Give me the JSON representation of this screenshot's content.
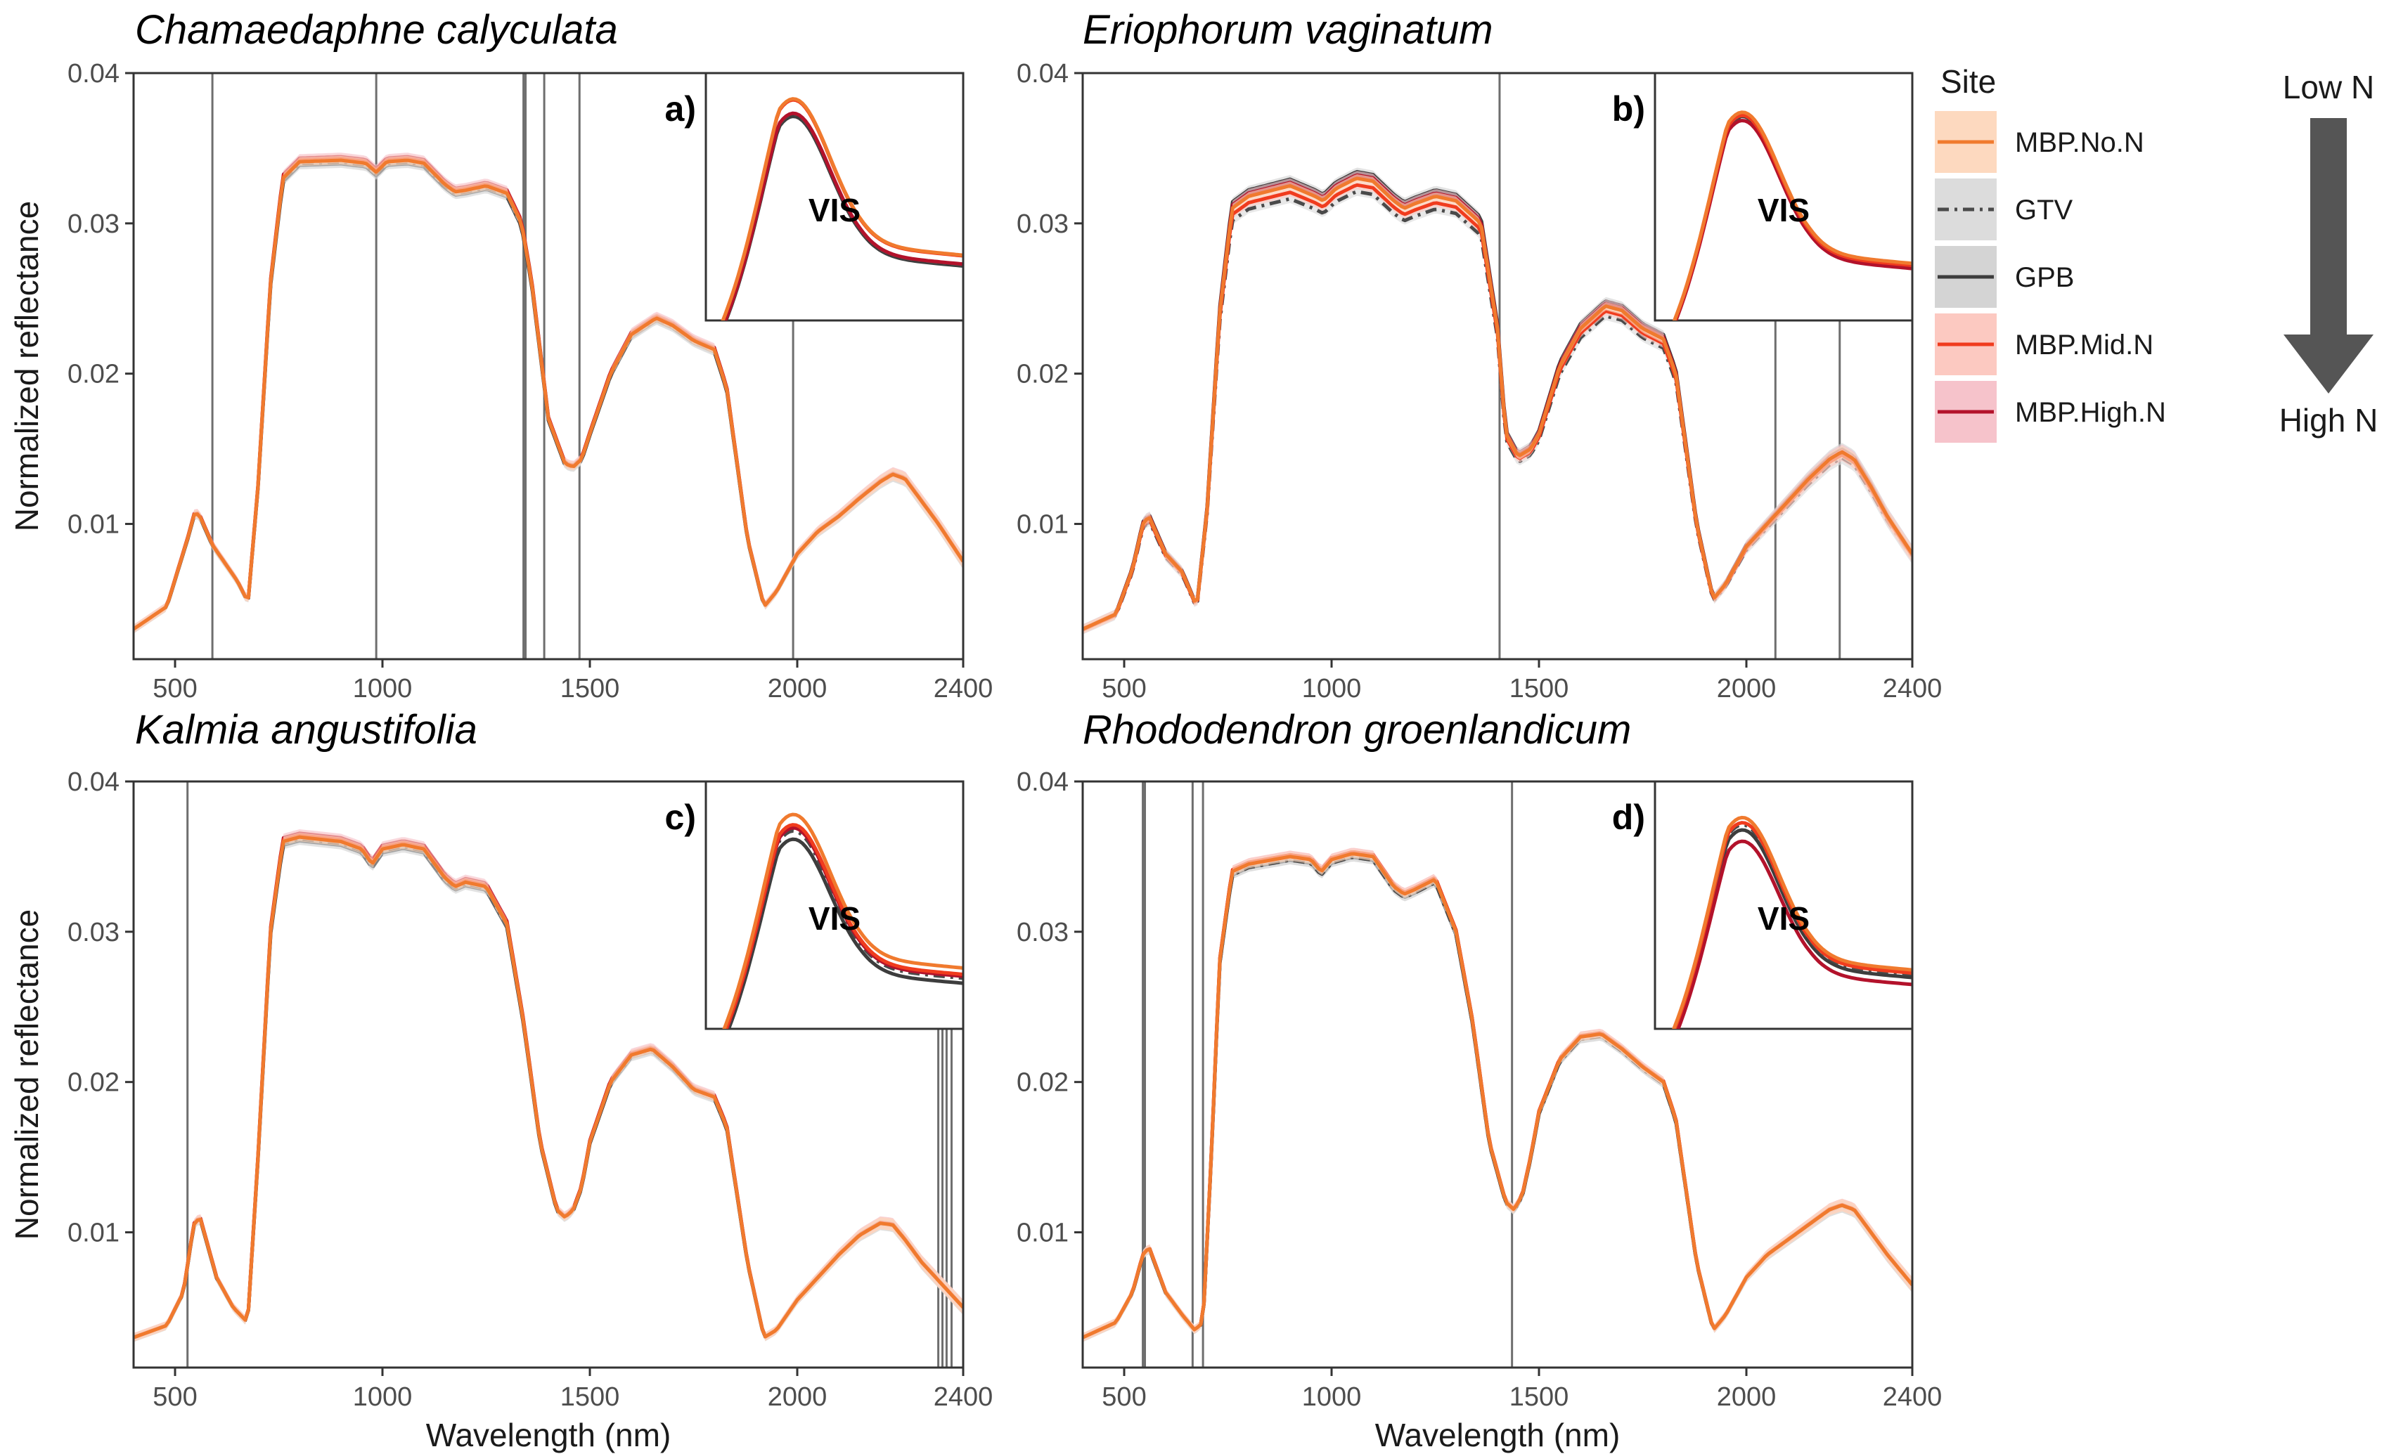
{
  "chart_data": [
    {
      "type": "line",
      "panel_label": "a)",
      "title": "Chamaedaphne calyculata",
      "xlabel": "",
      "ylabel": "Normalized reflectance",
      "xlim": [
        400,
        2400
      ],
      "ylim": [
        0.001,
        0.04
      ],
      "xticks": [
        500,
        1000,
        1500,
        2000,
        2400
      ],
      "xtick_labels": [
        "500",
        "1000",
        "1500",
        "2000",
        "2400"
      ],
      "yticks": [
        0.01,
        0.02,
        0.03,
        0.04
      ],
      "ytick_labels": [
        "0.01",
        "0.02",
        "0.03",
        "0.04"
      ],
      "vlines": [
        590,
        985,
        1340,
        1345,
        1390,
        1475,
        1990
      ],
      "inset_label": "VIS",
      "inset_peaks": {
        "MBP.No.N": 0.0395,
        "GTV": 0.038,
        "GPB": 0.0378,
        "MBP.Mid.N": 0.0394,
        "MBP.High.N": 0.0381
      },
      "series_adjust": {
        "MBP.No.N": 0.0,
        "GTV": -0.0001,
        "GPB": -0.0002,
        "MBP.Mid.N": 0.0001,
        "MBP.High.N": 0.0002
      },
      "x": [
        400,
        480,
        530,
        548,
        560,
        590,
        610,
        650,
        676,
        700,
        730,
        760,
        800,
        900,
        960,
        985,
        1010,
        1060,
        1100,
        1150,
        1175,
        1200,
        1250,
        1300,
        1335,
        1360,
        1400,
        1440,
        1460,
        1480,
        1500,
        1550,
        1600,
        1660,
        1700,
        1750,
        1800,
        1830,
        1880,
        1920,
        1950,
        2000,
        2050,
        2100,
        2150,
        2200,
        2230,
        2260,
        2300,
        2340,
        2400
      ],
      "values": [
        0.003,
        0.0045,
        0.009,
        0.0108,
        0.0105,
        0.0086,
        0.0078,
        0.0062,
        0.0048,
        0.0125,
        0.026,
        0.033,
        0.0341,
        0.0342,
        0.034,
        0.0334,
        0.0341,
        0.0342,
        0.034,
        0.0326,
        0.0321,
        0.0322,
        0.0325,
        0.032,
        0.03,
        0.026,
        0.017,
        0.014,
        0.0138,
        0.0143,
        0.016,
        0.02,
        0.0226,
        0.0237,
        0.0232,
        0.0222,
        0.0216,
        0.019,
        0.009,
        0.0045,
        0.0055,
        0.008,
        0.0095,
        0.0105,
        0.0117,
        0.0128,
        0.0133,
        0.013,
        0.0115,
        0.01,
        0.0075
      ]
    },
    {
      "type": "line",
      "panel_label": "b)",
      "title": "Eriophorum vaginatum",
      "xlabel": "",
      "ylabel": "",
      "xlim": [
        400,
        2400
      ],
      "ylim": [
        0.001,
        0.04
      ],
      "xticks": [
        500,
        1000,
        1500,
        2000,
        2400
      ],
      "xtick_labels": [
        "500",
        "1000",
        "1500",
        "2000",
        "2400"
      ],
      "yticks": [
        0.01,
        0.02,
        0.03,
        0.04
      ],
      "ytick_labels": [
        "0.01",
        "0.02",
        "0.03",
        "0.04"
      ],
      "vlines": [
        1405,
        2070,
        2225
      ],
      "inset_label": "VIS",
      "inset_peaks": {
        "MBP.No.N": 0.0382,
        "GTV": 0.0375,
        "GPB": 0.0378,
        "MBP.Mid.N": 0.0379,
        "MBP.High.N": 0.0374
      },
      "series_adjust": {
        "MBP.No.N": 0.0,
        "GTV": -0.0008,
        "GPB": 0.0004,
        "MBP.Mid.N": -0.0004,
        "MBP.High.N": 0.0002
      },
      "x": [
        400,
        480,
        520,
        545,
        560,
        600,
        640,
        675,
        700,
        730,
        760,
        800,
        900,
        960,
        980,
        1010,
        1060,
        1100,
        1150,
        1175,
        1200,
        1250,
        1300,
        1360,
        1400,
        1420,
        1450,
        1480,
        1500,
        1550,
        1600,
        1660,
        1700,
        1750,
        1800,
        1830,
        1880,
        1920,
        1950,
        2000,
        2050,
        2100,
        2150,
        2200,
        2230,
        2260,
        2300,
        2340,
        2400
      ],
      "values": [
        0.003,
        0.004,
        0.007,
        0.01,
        0.0105,
        0.008,
        0.0068,
        0.0045,
        0.011,
        0.024,
        0.031,
        0.0318,
        0.0325,
        0.0318,
        0.0315,
        0.0323,
        0.033,
        0.0328,
        0.0315,
        0.031,
        0.0313,
        0.0318,
        0.0315,
        0.03,
        0.023,
        0.016,
        0.0145,
        0.015,
        0.016,
        0.0205,
        0.023,
        0.0245,
        0.0242,
        0.023,
        0.0223,
        0.02,
        0.01,
        0.005,
        0.006,
        0.0085,
        0.01,
        0.0115,
        0.013,
        0.0143,
        0.0148,
        0.0143,
        0.0125,
        0.0105,
        0.008
      ]
    },
    {
      "type": "line",
      "panel_label": "c)",
      "title": "Kalmia angustifolia",
      "xlabel": "Wavelength (nm)",
      "ylabel": "Normalized reflectance",
      "xlim": [
        400,
        2400
      ],
      "ylim": [
        0.001,
        0.04
      ],
      "xticks": [
        500,
        1000,
        1500,
        2000,
        2400
      ],
      "xtick_labels": [
        "500",
        "1000",
        "1500",
        "2000",
        "2400"
      ],
      "yticks": [
        0.01,
        0.02,
        0.03,
        0.04
      ],
      "ytick_labels": [
        "0.01",
        "0.02",
        "0.03",
        "0.04"
      ],
      "vlines": [
        530,
        2340,
        2350,
        2360,
        2372
      ],
      "inset_label": "VIS",
      "inset_peaks": {
        "MBP.No.N": 0.0388,
        "GTV": 0.0372,
        "GPB": 0.0364,
        "MBP.Mid.N": 0.0378,
        "MBP.High.N": 0.0375
      },
      "series_adjust": {
        "MBP.No.N": 0.0,
        "GTV": -0.0001,
        "GPB": -0.0002,
        "MBP.Mid.N": 0.0001,
        "MBP.High.N": 0.0002
      },
      "x": [
        400,
        480,
        520,
        545,
        560,
        600,
        640,
        675,
        700,
        730,
        760,
        800,
        900,
        950,
        975,
        1000,
        1050,
        1100,
        1150,
        1175,
        1200,
        1250,
        1300,
        1340,
        1380,
        1420,
        1440,
        1460,
        1480,
        1500,
        1550,
        1600,
        1650,
        1700,
        1750,
        1800,
        1830,
        1880,
        1920,
        1950,
        2000,
        2050,
        2100,
        2150,
        2200,
        2230,
        2260,
        2300,
        2340,
        2400
      ],
      "values": [
        0.003,
        0.0038,
        0.006,
        0.0105,
        0.011,
        0.007,
        0.005,
        0.004,
        0.015,
        0.03,
        0.036,
        0.0363,
        0.036,
        0.0355,
        0.0345,
        0.0355,
        0.0358,
        0.0355,
        0.0336,
        0.033,
        0.0333,
        0.033,
        0.0305,
        0.024,
        0.016,
        0.0115,
        0.011,
        0.0115,
        0.013,
        0.016,
        0.02,
        0.0218,
        0.0222,
        0.021,
        0.0195,
        0.019,
        0.017,
        0.008,
        0.003,
        0.0035,
        0.0055,
        0.007,
        0.0085,
        0.0098,
        0.0106,
        0.0105,
        0.0095,
        0.008,
        0.0068,
        0.005
      ]
    },
    {
      "type": "line",
      "panel_label": "d)",
      "title": "Rhododendron groenlandicum",
      "xlabel": "Wavelength (nm)",
      "ylabel": "",
      "xlim": [
        400,
        2400
      ],
      "ylim": [
        0.001,
        0.04
      ],
      "xticks": [
        500,
        1000,
        1500,
        2000,
        2400
      ],
      "xtick_labels": [
        "500",
        "1000",
        "1500",
        "2000",
        "2400"
      ],
      "yticks": [
        0.01,
        0.02,
        0.03,
        0.04
      ],
      "ytick_labels": [
        "0.01",
        "0.02",
        "0.03",
        "0.04"
      ],
      "vlines": [
        545,
        550,
        665,
        690,
        1435
      ],
      "inset_label": "VIS",
      "inset_peaks": {
        "MBP.No.N": 0.0385,
        "GTV": 0.0378,
        "GPB": 0.0373,
        "MBP.Mid.N": 0.038,
        "MBP.High.N": 0.0362
      },
      "series_adjust": {
        "MBP.No.N": 0.0,
        "GTV": -0.0002,
        "GPB": -0.0002,
        "MBP.Mid.N": 0.0001,
        "MBP.High.N": 0.0001
      },
      "x": [
        400,
        480,
        520,
        545,
        560,
        600,
        640,
        670,
        690,
        710,
        730,
        760,
        800,
        900,
        950,
        975,
        1000,
        1050,
        1100,
        1150,
        1175,
        1200,
        1250,
        1300,
        1340,
        1380,
        1420,
        1440,
        1460,
        1480,
        1500,
        1550,
        1600,
        1650,
        1700,
        1750,
        1800,
        1830,
        1880,
        1920,
        1950,
        2000,
        2050,
        2100,
        2150,
        2200,
        2230,
        2260,
        2300,
        2340,
        2400
      ],
      "values": [
        0.003,
        0.004,
        0.006,
        0.0085,
        0.009,
        0.006,
        0.0045,
        0.0035,
        0.004,
        0.015,
        0.028,
        0.034,
        0.0345,
        0.035,
        0.0348,
        0.034,
        0.0348,
        0.0352,
        0.035,
        0.033,
        0.0325,
        0.0328,
        0.0335,
        0.03,
        0.024,
        0.016,
        0.012,
        0.0115,
        0.0125,
        0.015,
        0.018,
        0.0215,
        0.023,
        0.0232,
        0.0222,
        0.021,
        0.02,
        0.0175,
        0.008,
        0.0035,
        0.0045,
        0.007,
        0.0085,
        0.0095,
        0.0105,
        0.0115,
        0.0118,
        0.0115,
        0.01,
        0.0085,
        0.0065
      ]
    }
  ],
  "legend": {
    "title": "Site",
    "items": [
      {
        "label": "MBP.No.N",
        "color": "#f07a2e",
        "fill": "#fdd9bf",
        "dash": "solid"
      },
      {
        "label": "GTV",
        "color": "#4a4a4a",
        "fill": "#dcdcdc",
        "dash": "dashdot"
      },
      {
        "label": "GPB",
        "color": "#3d3d3d",
        "fill": "#d4d4d4",
        "dash": "solid"
      },
      {
        "label": "MBP.Mid.N",
        "color": "#f03c1e",
        "fill": "#fcc9c1",
        "dash": "solid"
      },
      {
        "label": "MBP.High.N",
        "color": "#b3122b",
        "fill": "#f6c3cb",
        "dash": "solid"
      }
    ]
  },
  "gradient_arrow": {
    "top_label": "Low N",
    "bottom_label": "High N",
    "color": "#555555"
  }
}
